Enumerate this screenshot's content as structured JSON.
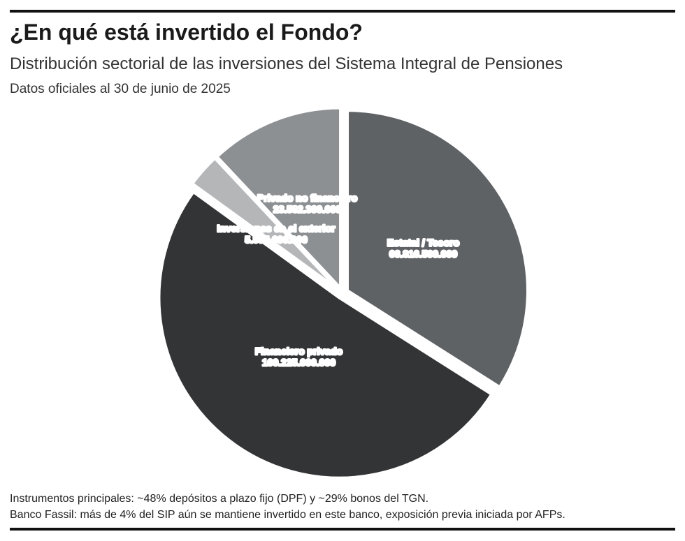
{
  "header": {
    "title": "¿En qué está invertido el Fondo?",
    "subtitle": "Distribución sectorial de las inversiones del Sistema Integral de Pensiones",
    "date": "Datos oficiales al 30 de junio de 2025"
  },
  "chart_data": {
    "type": "pie",
    "title": "¿En qué está invertido el Fondo?",
    "slices": [
      {
        "label": "Estatal / Tesoro",
        "value": 66816500000,
        "value_label": "66.816.500.000",
        "color": "#5e6265"
      },
      {
        "label": "Financiero privado",
        "value": 100225000000,
        "value_label": "100.225.000.000",
        "color": "#333436"
      },
      {
        "label": "Inversiones en el exterior",
        "value": 5895600000,
        "value_label": "5.895.600.000",
        "color": "#b4b6b8"
      },
      {
        "label": "Privado no financiero",
        "value": 23582300000,
        "value_label": "23.582.300.000",
        "color": "#8c9093"
      }
    ],
    "label_color": "#ffffff",
    "legend": "none",
    "start": "12 o'clock, clockwise"
  },
  "notes": [
    "Instrumentos principales: ~48% depósitos a plazo fijo (DPF) y ~29% bonos del TGN.",
    "Banco Fassil: más de 4% del SIP aún se mantiene invertido en este banco, exposición previa iniciada por AFPs."
  ]
}
